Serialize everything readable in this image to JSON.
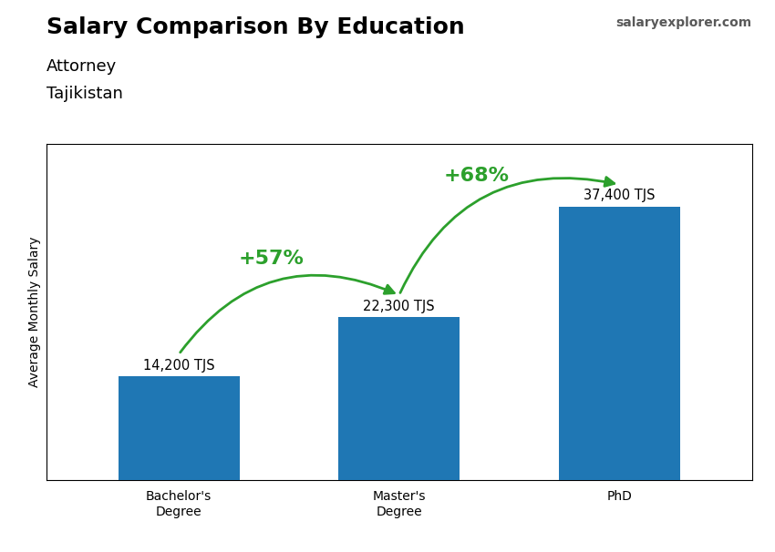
{
  "chart_data": {
    "type": "bar",
    "title": "Salary Comparison By Education",
    "subtitle": [
      "Attorney",
      "Tajikistan"
    ],
    "source": "salaryexplorer.com",
    "categories": [
      "Bachelor's\nDegree",
      "Master's\nDegree",
      "PhD"
    ],
    "values": [
      14200,
      22300,
      37400
    ],
    "value_labels": [
      "14,200 TJS",
      "22,300 TJS",
      "37,400 TJS"
    ],
    "data_labels": true,
    "y_label": "Average Monthly Salary",
    "ylim": [
      0,
      46000
    ],
    "tick_labels": "x",
    "grid": false,
    "annotations": [
      {
        "text": "+57%",
        "from": "Bachelor's\nDegree",
        "to": "Master's\nDegree"
      },
      {
        "text": "+68%",
        "from": "Master's\nDegree",
        "to": "PhD"
      }
    ]
  }
}
